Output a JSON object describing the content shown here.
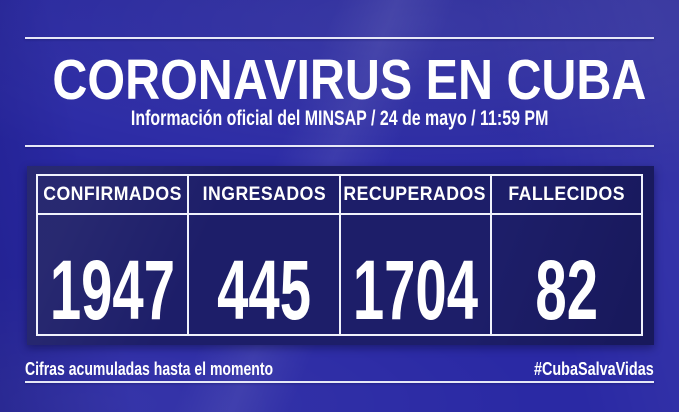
{
  "colors": {
    "background": "#2a29a4",
    "panel": "#1d1e69",
    "line": "#f0f2fc",
    "text": "#ffffff"
  },
  "header": {
    "title": "CORONAVIRUS EN CUBA",
    "subtitle": "Información oficial del MINSAP / 24 de mayo / 11:59 PM"
  },
  "footer": {
    "note": "Cifras acumuladas hasta el momento",
    "hashtag": "#CubaSalvaVidas"
  },
  "chart_data": {
    "type": "table",
    "title": "CORONAVIRUS EN CUBA",
    "subtitle": "Información oficial del MINSAP / 24 de mayo / 11:59 PM",
    "categories": [
      "CONFIRMADOS",
      "INGRESADOS",
      "RECUPERADOS",
      "FALLECIDOS"
    ],
    "values": [
      1947,
      445,
      1704,
      82
    ],
    "note": "Cifras acumuladas hasta el momento",
    "hashtag": "#CubaSalvaVidas"
  }
}
